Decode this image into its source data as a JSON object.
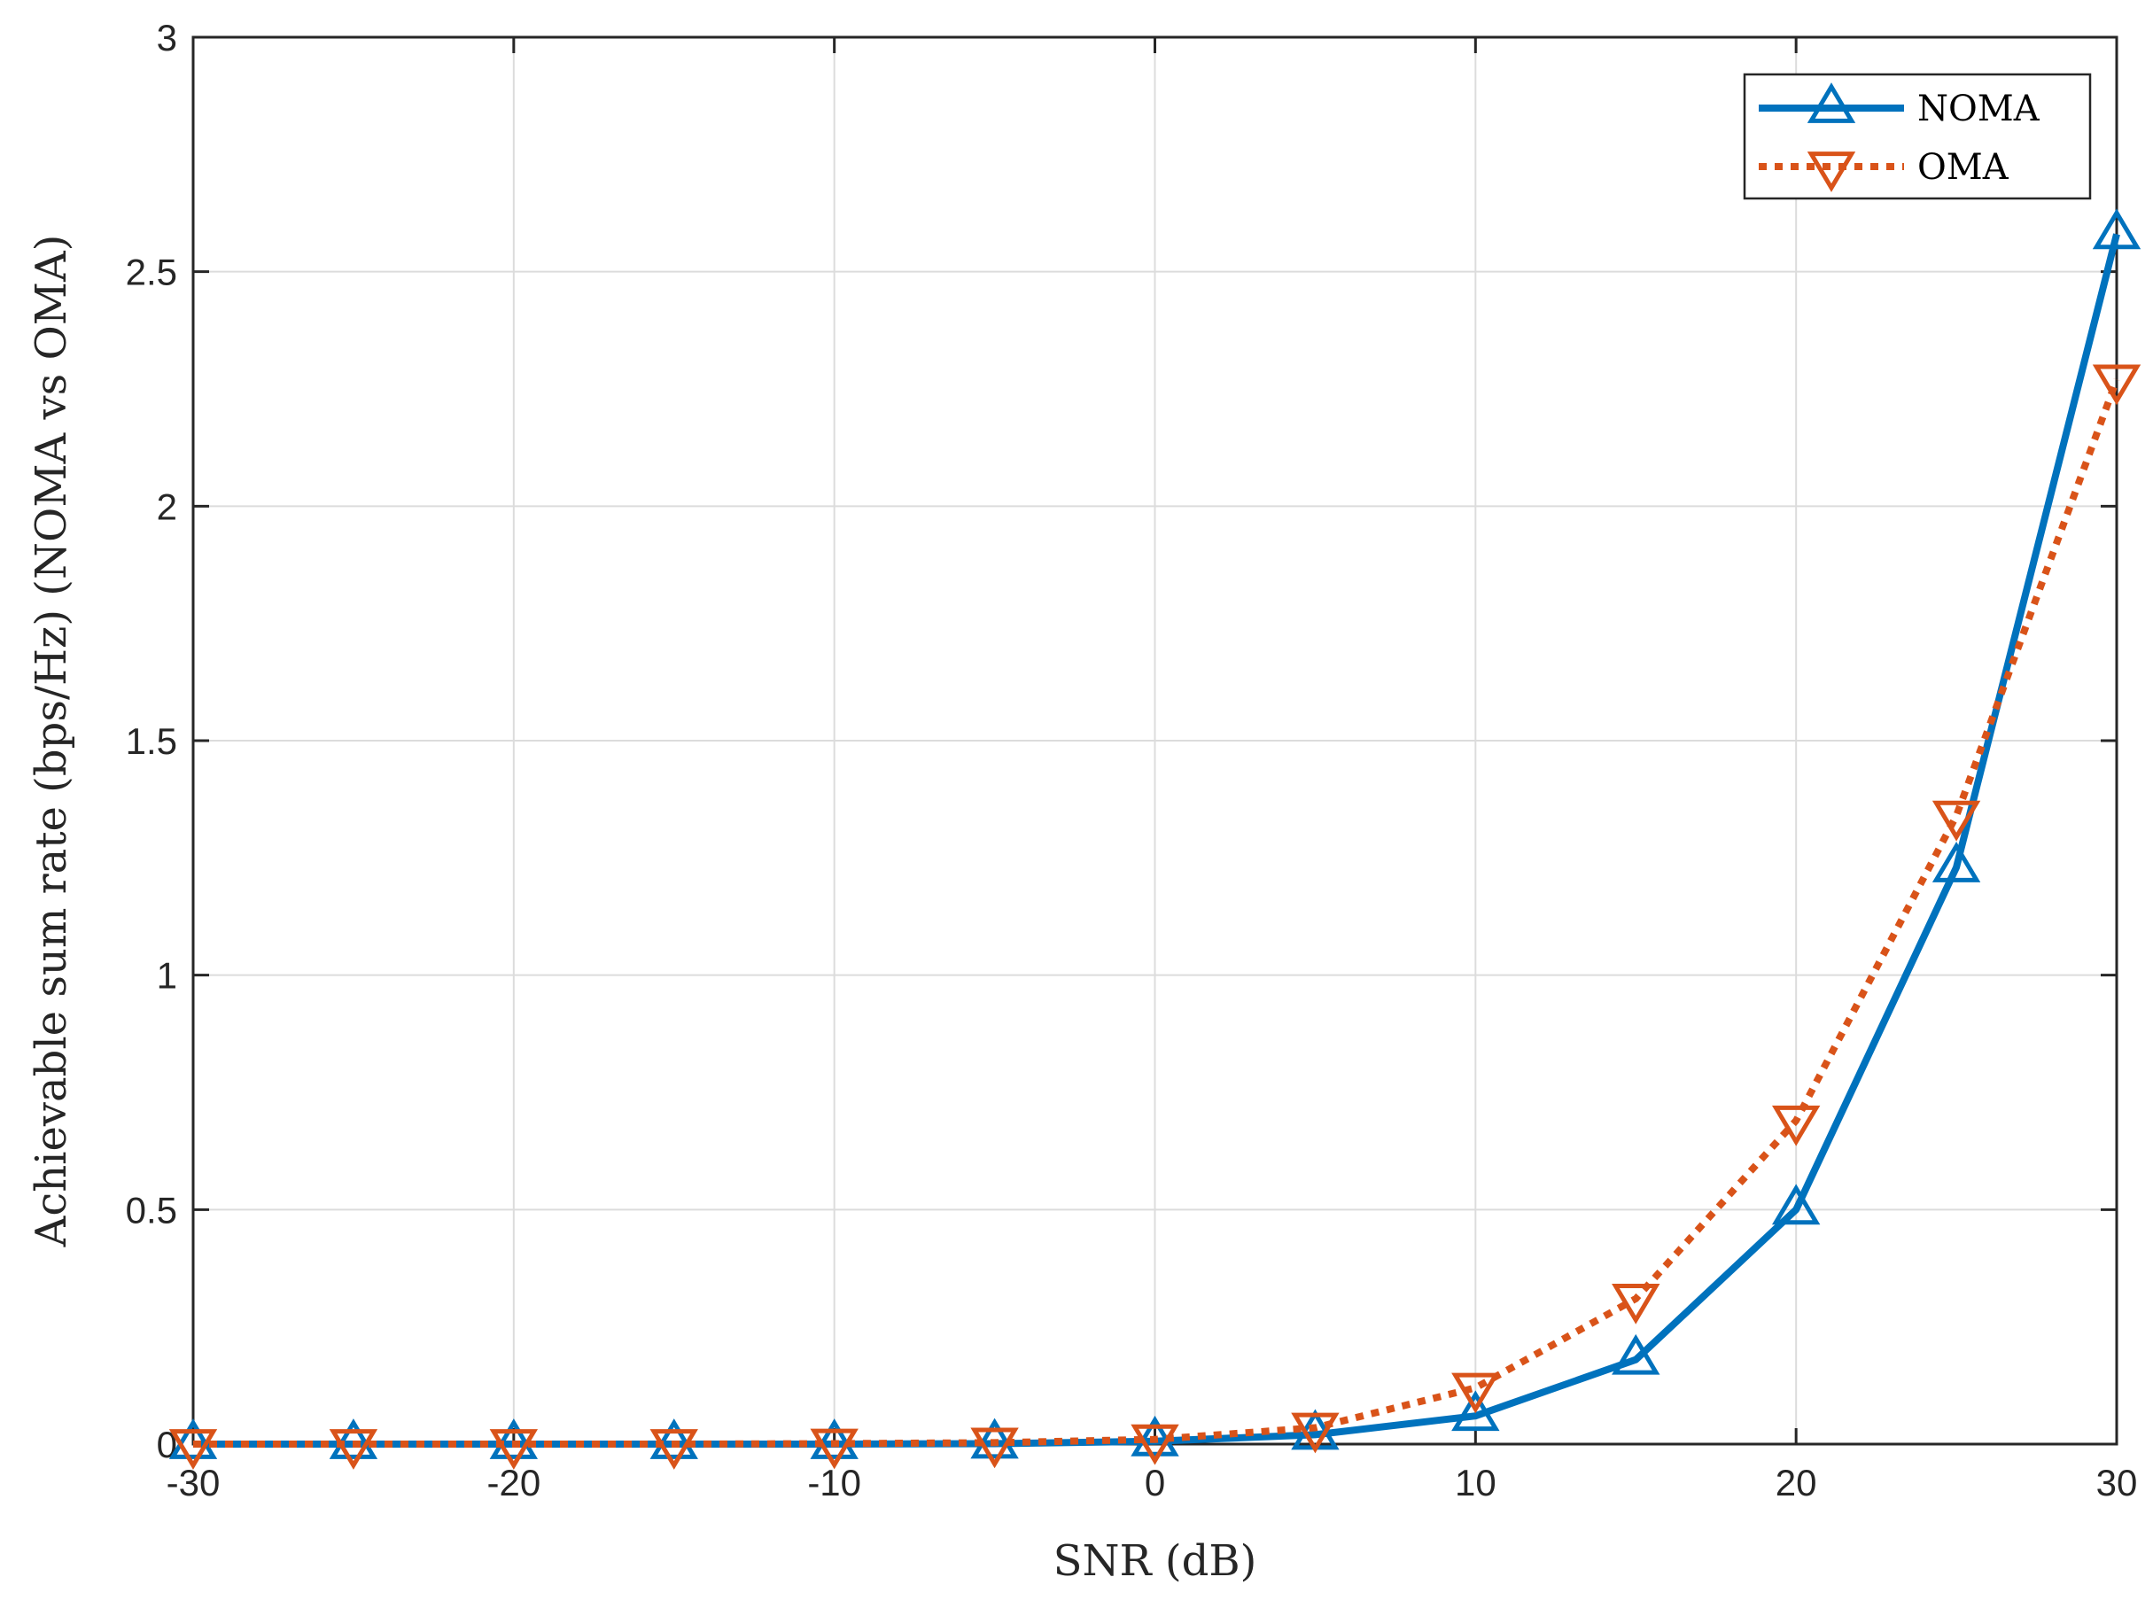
{
  "chart_data": {
    "type": "line",
    "xlabel": "SNR (dB)",
    "ylabel": "Achievable sum rate (bps/Hz) (NOMA vs OMA)",
    "xlim": [
      -30,
      30
    ],
    "ylim": [
      0,
      3
    ],
    "xticks": [
      "-30",
      "-20",
      "-10",
      "0",
      "10",
      "20",
      "30"
    ],
    "xtick_values": [
      -30,
      -20,
      -10,
      0,
      10,
      20,
      30
    ],
    "yticks": [
      "0",
      "0.5",
      "1",
      "1.5",
      "2",
      "2.5",
      "3"
    ],
    "ytick_values": [
      0,
      0.5,
      1,
      1.5,
      2,
      2.5,
      3
    ],
    "grid": true,
    "legend_position": "top-right",
    "x": [
      -30,
      -25,
      -20,
      -15,
      -10,
      -5,
      0,
      5,
      10,
      15,
      20,
      25,
      30
    ],
    "series": [
      {
        "name": "NOMA",
        "color": "#0072BD",
        "line": "solid",
        "marker": "triangle-up",
        "values": [
          0.0,
          0.0,
          0.0,
          0.0,
          0.0,
          0.001,
          0.006,
          0.02,
          0.06,
          0.18,
          0.5,
          1.23,
          2.58
        ]
      },
      {
        "name": "OMA",
        "color": "#D95319",
        "line": "dotted",
        "marker": "triangle-down",
        "values": [
          0.0,
          0.0,
          0.0,
          0.0,
          0.001,
          0.003,
          0.01,
          0.035,
          0.12,
          0.31,
          0.69,
          1.34,
          2.27
        ]
      }
    ]
  }
}
